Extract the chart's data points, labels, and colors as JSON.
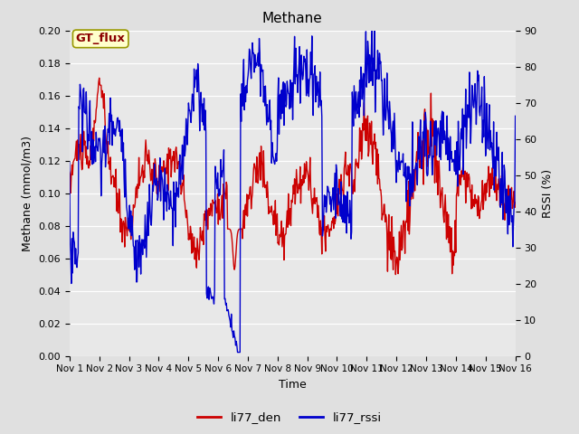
{
  "title": "Methane",
  "xlabel": "Time",
  "ylabel_left": "Methane (mmol/m3)",
  "ylabel_right": "RSSI (%)",
  "ylim_left": [
    0.0,
    0.2
  ],
  "ylim_right": [
    0,
    90
  ],
  "yticks_left": [
    0.0,
    0.02,
    0.04,
    0.06,
    0.08,
    0.1,
    0.12,
    0.14,
    0.16,
    0.18,
    0.2
  ],
  "yticks_right": [
    0,
    10,
    20,
    30,
    40,
    50,
    60,
    70,
    80,
    90
  ],
  "xtick_labels": [
    "Nov 1",
    "Nov 2",
    "Nov 3",
    "Nov 4",
    "Nov 5",
    "Nov 6",
    "Nov 7",
    "Nov 8",
    "Nov 9",
    "Nov 10",
    "Nov 11",
    "Nov 12",
    "Nov 13",
    "Nov 14",
    "Nov 15",
    "Nov 16"
  ],
  "color_red": "#cc0000",
  "color_blue": "#0000cc",
  "fig_bg_color": "#e0e0e0",
  "plot_bg_color": "#e8e8e8",
  "legend_labels": [
    "li77_den",
    "li77_rssi"
  ],
  "gt_flux_label": "GT_flux",
  "gt_flux_text_color": "#8b0000",
  "gt_flux_bg": "#ffffcc",
  "gt_flux_border": "#999900",
  "line_width": 1.0,
  "title_fontsize": 11,
  "axis_label_fontsize": 9,
  "tick_fontsize": 8
}
